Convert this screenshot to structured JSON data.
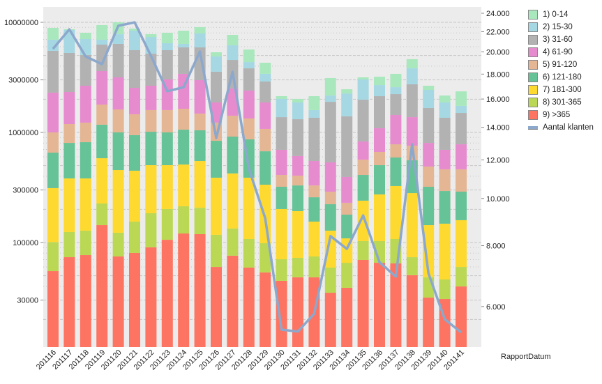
{
  "chart_data": {
    "type": "bar",
    "stacked": true,
    "y_scale": "log",
    "y2_scale": "log",
    "grid": true,
    "legend_position": "right",
    "xlabel": "RapportDatum",
    "categories": [
      "201116",
      "201117",
      "201118",
      "201119",
      "201120",
      "201121",
      "201122",
      "201123",
      "201124",
      "201125",
      "201126",
      "201127",
      "201128",
      "201129",
      "201130",
      "201131",
      "201132",
      "201133",
      "201134",
      "201135",
      "201136",
      "201137",
      "201138",
      "201139",
      "201140",
      "201141"
    ],
    "y_ticks": [
      {
        "value": 10000000,
        "label": "10000000"
      },
      {
        "value": 3000000,
        "label": "3000000"
      },
      {
        "value": 1000000,
        "label": "1000000"
      },
      {
        "value": 300000,
        "label": "300000"
      },
      {
        "value": 100000,
        "label": "100000"
      },
      {
        "value": 30000,
        "label": "30000"
      }
    ],
    "y2_ticks": [
      {
        "value": 24000,
        "label": "24.000"
      },
      {
        "value": 22000,
        "label": "22.000"
      },
      {
        "value": 20000,
        "label": "20.000"
      },
      {
        "value": 18000,
        "label": "18.000"
      },
      {
        "value": 16000,
        "label": "16.000"
      },
      {
        "value": 14000,
        "label": "14.000"
      },
      {
        "value": 12000,
        "label": "12.000"
      },
      {
        "value": 10000,
        "label": "10.000"
      },
      {
        "value": 8000,
        "label": "8.000"
      },
      {
        "value": 6000,
        "label": "6.000"
      }
    ],
    "series": [
      {
        "name": "1) 0-14",
        "color": "#a9e8bd",
        "values": [
          1950000,
          130000,
          988000,
          2490000,
          2200000,
          376000,
          438000,
          1578000,
          2026000,
          1111000,
          448000,
          1512000,
          1307000,
          891000,
          119000,
          143000,
          538000,
          956000,
          207000,
          135000,
          514000,
          828000,
          805000,
          223000,
          292000,
          618000
        ]
      },
      {
        "name": "2) 15-30",
        "color": "#a6d8e3",
        "values": [
          1445000,
          3250000,
          2002000,
          680000,
          1432000,
          2811000,
          2174000,
          874000,
          452000,
          2009000,
          1342000,
          1630000,
          536000,
          507000,
          637000,
          553000,
          237000,
          266000,
          859000,
          1045000,
          559000,
          348000,
          1084000,
          765000,
          513000,
          239000
        ]
      },
      {
        "name": "3) 31-60",
        "color": "#b2b2b2",
        "values": [
          3209000,
          2942000,
          2390000,
          2664000,
          3206000,
          3042000,
          2533000,
          2556000,
          2512000,
          2931000,
          1685000,
          2044000,
          1420000,
          1026000,
          682000,
          708000,
          808000,
          1362000,
          1006000,
          1154000,
          1042000,
          789000,
          1358000,
          864000,
          663000,
          723000
        ]
      },
      {
        "name": "4) 61-90",
        "color": "#e78bcf",
        "values": [
          1296000,
          1137000,
          1428000,
          1815000,
          1544000,
          1079000,
          1060000,
          1432000,
          1763000,
          1502000,
          644000,
          1087000,
          1060000,
          795000,
          284000,
          205000,
          220000,
          244900,
          164000,
          262000,
          426000,
          659000,
          619000,
          313000,
          232600,
          317600
        ]
      },
      {
        "name": "5) 91-120",
        "color": "#e4b694",
        "values": [
          345000,
          388000,
          412000,
          616000,
          618000,
          518000,
          581000,
          595000,
          582000,
          438000,
          388000,
          503000,
          474000,
          402000,
          90100,
          75000,
          72400,
          66900,
          50500,
          155000,
          161000,
          188400,
          200000,
          168900,
          168600,
          172700
        ]
      },
      {
        "name": "6) 121-180",
        "color": "#66c297",
        "values": [
          343000,
          421000,
          433000,
          592000,
          545000,
          495000,
          510000,
          496000,
          548000,
          495000,
          451000,
          492000,
          477000,
          339000,
          119500,
          137200,
          102700,
          94600,
          70000,
          171100,
          230500,
          265800,
          276800,
          177000,
          145500,
          130100
        ]
      },
      {
        "name": "7) 181-300",
        "color": "#fed930",
        "values": [
          211000,
          257500,
          253800,
          357000,
          332300,
          294100,
          319500,
          302600,
          297700,
          343000,
          270500,
          290000,
          280400,
          236400,
          130900,
          120200,
          80200,
          69000,
          43600,
          136900,
          170500,
          218200,
          207600,
          95600,
          102100,
          99600
        ]
      },
      {
        "name": "8) 301-365",
        "color": "#bbd855",
        "values": [
          46000,
          50900,
          51300,
          82100,
          48000,
          74500,
          94100,
          95500,
          92500,
          87900,
          57500,
          58100,
          48400,
          45100,
          25600,
          24300,
          26400,
          24200,
          26700,
          33500,
          37500,
          43000,
          23100,
          16700,
          15500,
          20100
        ]
      },
      {
        "name": "9) >365",
        "color": "#fd7462",
        "values": [
          55000,
          73600,
          76900,
          143900,
          74700,
          80400,
          90400,
          105900,
          120800,
          119100,
          60000,
          75900,
          59200,
          53500,
          44900,
          48300,
          48300,
          35000,
          38800,
          69500,
          65500,
          64600,
          50500,
          31600,
          30700,
          39900
        ]
      }
    ],
    "line_series": {
      "name": "Aantal klanten",
      "color": "#8ca8cc",
      "axis": "right",
      "values": [
        20290,
        22240,
        19560,
        18870,
        22620,
        22990,
        19620,
        16600,
        16920,
        20030,
        13310,
        18190,
        11510,
        9110,
        5380,
        5330,
        5800,
        8370,
        7880,
        9230,
        7400,
        6910,
        12920,
        7020,
        5650,
        5310
      ]
    }
  }
}
